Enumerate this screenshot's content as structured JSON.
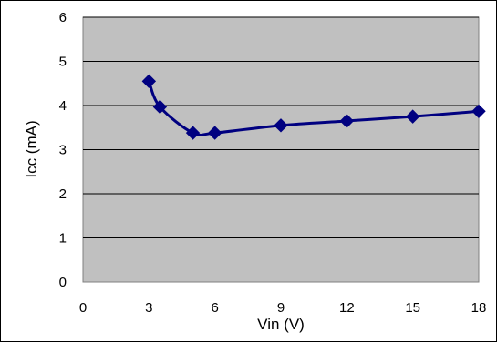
{
  "chart_data": {
    "type": "line",
    "title": "",
    "xlabel": "Vin (V)",
    "ylabel": "Icc (mA)",
    "xlim": [
      0,
      18
    ],
    "ylim": [
      0,
      6
    ],
    "x_ticks": [
      "0",
      "3",
      "6",
      "9",
      "12",
      "15",
      "18"
    ],
    "y_ticks": [
      "0",
      "1",
      "2",
      "3",
      "4",
      "5",
      "6"
    ],
    "grid": "horizontal",
    "legend": "none",
    "series": [
      {
        "x": [
          3,
          3.5,
          5,
          6,
          9,
          12,
          15,
          18
        ],
        "y": [
          4.55,
          3.97,
          3.38,
          3.38,
          3.55,
          3.65,
          3.75,
          3.87
        ]
      }
    ],
    "colors": {
      "plot_background": "#c0c0c0",
      "series": "#000080",
      "grid": "#000000"
    }
  }
}
